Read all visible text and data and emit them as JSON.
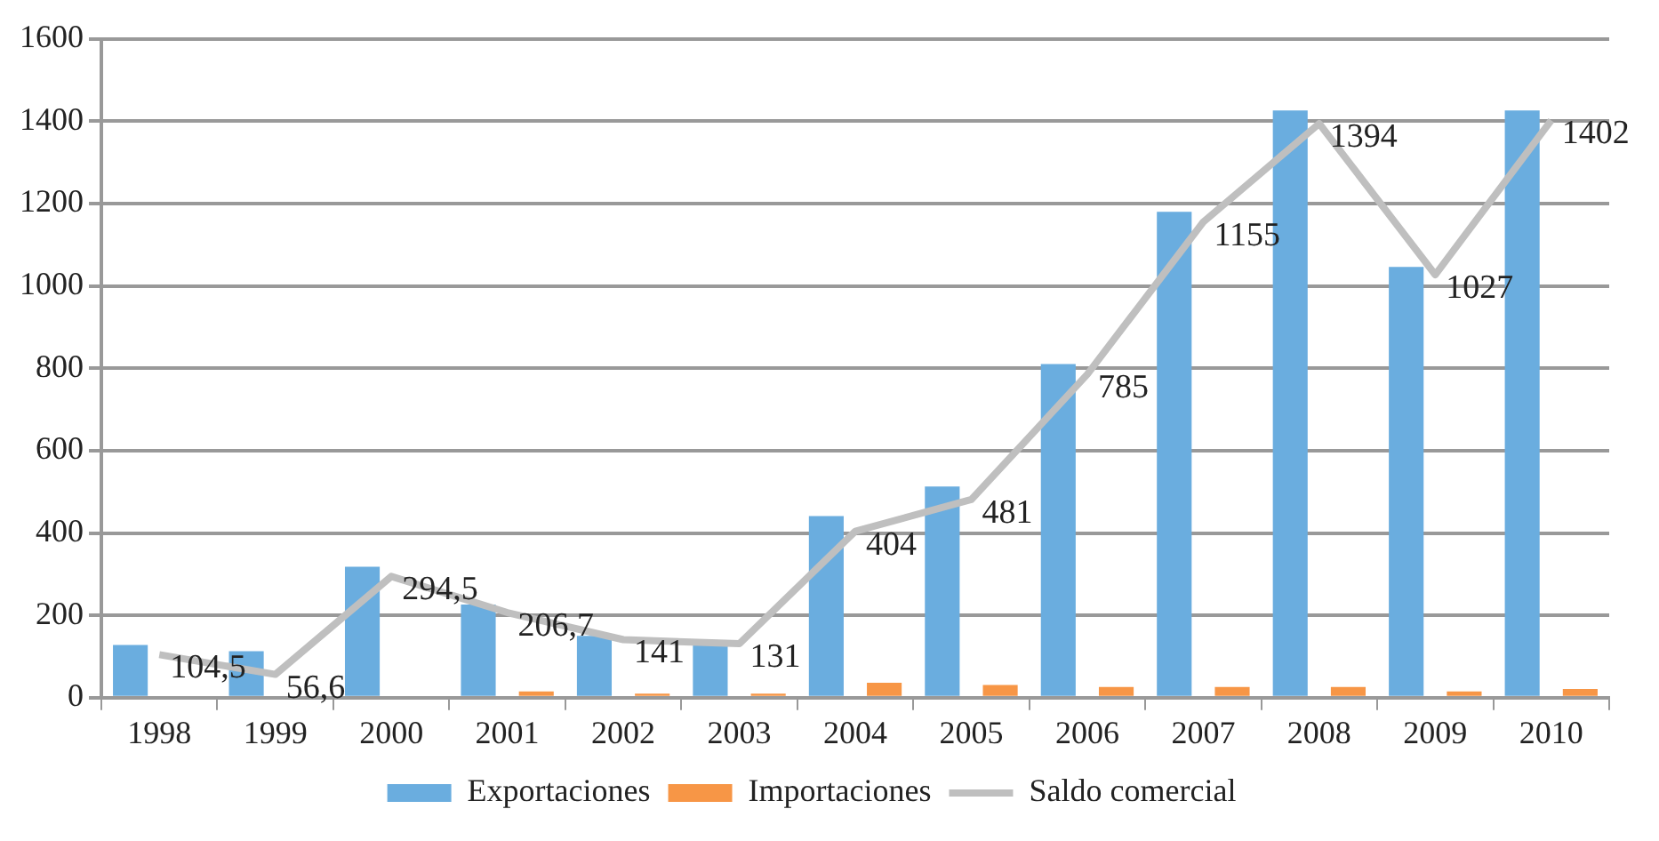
{
  "chart_data": {
    "type": "bar",
    "categories": [
      "1998",
      "1999",
      "2000",
      "2001",
      "2002",
      "2003",
      "2004",
      "2005",
      "2006",
      "2007",
      "2008",
      "2009",
      "2010"
    ],
    "series": [
      {
        "name": "Exportaciones",
        "color": "#6aaddf",
        "values": [
          128,
          113,
          318,
          226,
          150,
          140,
          441,
          513,
          810,
          1180,
          1426,
          1046,
          1426
        ]
      },
      {
        "name": "Importaciones",
        "color": "#f79646",
        "values": [
          0,
          0,
          0,
          15,
          10,
          10,
          36,
          31,
          26,
          26,
          26,
          15,
          21
        ]
      },
      {
        "name": "Saldo comercial",
        "type": "line",
        "color": "#bfbfbf",
        "values": [
          104.5,
          56.6,
          294.5,
          206.7,
          141,
          131,
          404,
          481,
          785,
          1155,
          1394,
          1027,
          1402
        ],
        "value_labels": [
          "104,5",
          "56,6",
          "294,5",
          "206,7",
          "141",
          "131",
          "404",
          "481",
          "785",
          "1155",
          "1394",
          "1027",
          "1402"
        ]
      }
    ],
    "ylim": [
      0,
      1600
    ],
    "yticks": [
      0,
      200,
      400,
      600,
      800,
      1000,
      1200,
      1400,
      1600
    ],
    "grid": "y",
    "legend": "bottom",
    "marker": "none",
    "line_style": "solid"
  }
}
